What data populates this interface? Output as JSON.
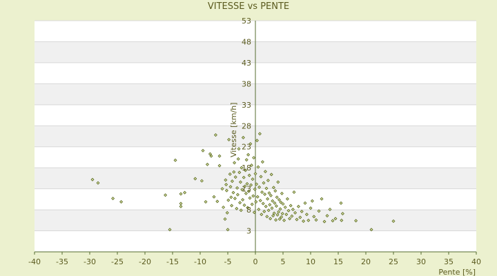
{
  "chart_data": {
    "type": "scatter",
    "title": "VITESSE vs PENTE",
    "xlabel": "Pente [%]",
    "ylabel": "Vitesse [km/h]",
    "xlim": [
      -40,
      40
    ],
    "ylim": [
      -2,
      53
    ],
    "x_ticks": [
      -40,
      -35,
      -30,
      -25,
      -20,
      -15,
      -10,
      -5,
      0,
      5,
      10,
      15,
      20,
      25,
      30,
      35,
      40
    ],
    "y_ticks": [
      3,
      8,
      13,
      18,
      23,
      28,
      33,
      38,
      43,
      48,
      53
    ],
    "grid": true,
    "legend": "none",
    "colors": {
      "background": "#ecf1cf",
      "plot_bg": "#ffffff",
      "band": "#f0f0f0",
      "axis": "#556b2f",
      "marker_fill": "#d4d9a0",
      "marker_edge": "#4b5e12",
      "text": "#5a5a1e"
    },
    "points": [
      [
        -29.5,
        15.2
      ],
      [
        -28.5,
        14.4
      ],
      [
        -25.8,
        10.7
      ],
      [
        -24.3,
        9.9
      ],
      [
        -16.3,
        11.5
      ],
      [
        -15.5,
        3.3
      ],
      [
        -14.5,
        19.8
      ],
      [
        -13.5,
        9.5
      ],
      [
        -13.5,
        8.8
      ],
      [
        -13.5,
        11.8
      ],
      [
        -12.8,
        12.1
      ],
      [
        -10.9,
        15.4
      ],
      [
        -9.7,
        14.9
      ],
      [
        -9.5,
        22.1
      ],
      [
        -9.0,
        9.9
      ],
      [
        -8.7,
        18.8
      ],
      [
        -8.2,
        21.3
      ],
      [
        -8.0,
        20.8
      ],
      [
        -7.5,
        11.1
      ],
      [
        -7.2,
        25.8
      ],
      [
        -6.9,
        10.0
      ],
      [
        -6.5,
        20.8
      ],
      [
        -6.0,
        13.0
      ],
      [
        -6.5,
        18.5
      ],
      [
        -5.8,
        8.6
      ],
      [
        -5.5,
        5.8
      ],
      [
        -5.4,
        15.1
      ],
      [
        -5.3,
        14.0
      ],
      [
        -5.2,
        12.6
      ],
      [
        -5.1,
        7.3
      ],
      [
        -5.0,
        3.3
      ],
      [
        -4.9,
        10.3
      ],
      [
        -4.8,
        24.7
      ],
      [
        -4.6,
        16.5
      ],
      [
        -4.5,
        13.5
      ],
      [
        -4.4,
        11.0
      ],
      [
        -4.3,
        9.0
      ],
      [
        -4.2,
        14.8
      ],
      [
        -4.0,
        12.1
      ],
      [
        -3.9,
        17.0
      ],
      [
        -3.8,
        19.2
      ],
      [
        -3.7,
        10.7
      ],
      [
        -3.6,
        15.8
      ],
      [
        -3.4,
        8.3
      ],
      [
        -3.3,
        13.2
      ],
      [
        -3.2,
        11.6
      ],
      [
        -3.1,
        20.1
      ],
      [
        -3.0,
        22.5
      ],
      [
        -2.9,
        16.9
      ],
      [
        -2.8,
        9.7
      ],
      [
        -2.7,
        14.6
      ],
      [
        -2.6,
        7.9
      ],
      [
        -2.5,
        18.0
      ],
      [
        -2.4,
        12.8
      ],
      [
        -2.3,
        10.4
      ],
      [
        -2.2,
        25.2
      ],
      [
        -2.1,
        15.7
      ],
      [
        -2.0,
        9.1
      ],
      [
        -1.9,
        13.6
      ],
      [
        -1.8,
        17.4
      ],
      [
        -1.7,
        11.9
      ],
      [
        -1.6,
        19.9
      ],
      [
        -1.5,
        14.2
      ],
      [
        -1.4,
        8.5
      ],
      [
        -1.3,
        21.1
      ],
      [
        -1.2,
        12.4
      ],
      [
        -1.1,
        16.2
      ],
      [
        -1.0,
        10.8
      ],
      [
        -0.9,
        23.7
      ],
      [
        -0.8,
        13.9
      ],
      [
        -0.7,
        18.6
      ],
      [
        -0.6,
        9.3
      ],
      [
        -0.5,
        15.3
      ],
      [
        -0.4,
        11.3
      ],
      [
        -0.3,
        20.4
      ],
      [
        -0.2,
        7.4
      ],
      [
        -0.1,
        12.9
      ],
      [
        0.0,
        16.6
      ],
      [
        0.1,
        9.9
      ],
      [
        0.2,
        14.1
      ],
      [
        0.3,
        24.5
      ],
      [
        0.4,
        11.1
      ],
      [
        0.5,
        18.2
      ],
      [
        0.6,
        8.1
      ],
      [
        0.7,
        13.4
      ],
      [
        0.8,
        26.1
      ],
      [
        0.9,
        10.2
      ],
      [
        1.0,
        15.9
      ],
      [
        1.1,
        6.9
      ],
      [
        1.2,
        12.2
      ],
      [
        1.3,
        19.4
      ],
      [
        1.4,
        9.5
      ],
      [
        1.5,
        14.4
      ],
      [
        1.6,
        7.6
      ],
      [
        1.7,
        11.7
      ],
      [
        1.8,
        17.1
      ],
      [
        1.9,
        8.8
      ],
      [
        2.0,
        13.1
      ],
      [
        2.1,
        6.4
      ],
      [
        2.2,
        10.6
      ],
      [
        2.3,
        15.0
      ],
      [
        2.4,
        7.9
      ],
      [
        2.5,
        12.0
      ],
      [
        2.6,
        9.2
      ],
      [
        2.7,
        5.9
      ],
      [
        2.8,
        11.4
      ],
      [
        2.9,
        16.4
      ],
      [
        3.0,
        8.4
      ],
      [
        3.1,
        10.1
      ],
      [
        3.2,
        6.6
      ],
      [
        3.3,
        13.3
      ],
      [
        3.4,
        7.2
      ],
      [
        3.5,
        9.6
      ],
      [
        3.6,
        12.5
      ],
      [
        3.7,
        5.6
      ],
      [
        3.8,
        8.9
      ],
      [
        3.9,
        11.0
      ],
      [
        4.0,
        6.8
      ],
      [
        4.1,
        14.6
      ],
      [
        4.2,
        7.5
      ],
      [
        4.3,
        10.4
      ],
      [
        4.4,
        5.8
      ],
      [
        4.5,
        8.2
      ],
      [
        4.6,
        9.8
      ],
      [
        4.7,
        6.3
      ],
      [
        4.8,
        11.9
      ],
      [
        4.9,
        7.1
      ],
      [
        5.0,
        9.4
      ],
      [
        5.2,
        5.5
      ],
      [
        5.4,
        8.6
      ],
      [
        5.6,
        6.9
      ],
      [
        5.8,
        10.6
      ],
      [
        6.0,
        7.8
      ],
      [
        6.2,
        5.9
      ],
      [
        6.4,
        9.0
      ],
      [
        6.6,
        6.5
      ],
      [
        6.8,
        8.1
      ],
      [
        7.0,
        12.2
      ],
      [
        7.2,
        7.3
      ],
      [
        7.5,
        5.7
      ],
      [
        7.8,
        8.8
      ],
      [
        8.1,
        6.2
      ],
      [
        8.4,
        7.6
      ],
      [
        8.7,
        5.3
      ],
      [
        9.0,
        9.6
      ],
      [
        9.3,
        6.9
      ],
      [
        9.6,
        5.5
      ],
      [
        10.0,
        8.4
      ],
      [
        10.3,
        10.1
      ],
      [
        10.6,
        6.4
      ],
      [
        11.0,
        5.6
      ],
      [
        11.5,
        7.7
      ],
      [
        12.0,
        10.6
      ],
      [
        12.5,
        5.2
      ],
      [
        13.0,
        6.6
      ],
      [
        13.5,
        8.1
      ],
      [
        14.0,
        5.4
      ],
      [
        14.5,
        5.9
      ],
      [
        15.5,
        9.6
      ],
      [
        15.8,
        7.1
      ],
      [
        15.6,
        5.5
      ],
      [
        18.2,
        5.4
      ],
      [
        21.0,
        3.3
      ],
      [
        25.0,
        5.3
      ]
    ]
  }
}
